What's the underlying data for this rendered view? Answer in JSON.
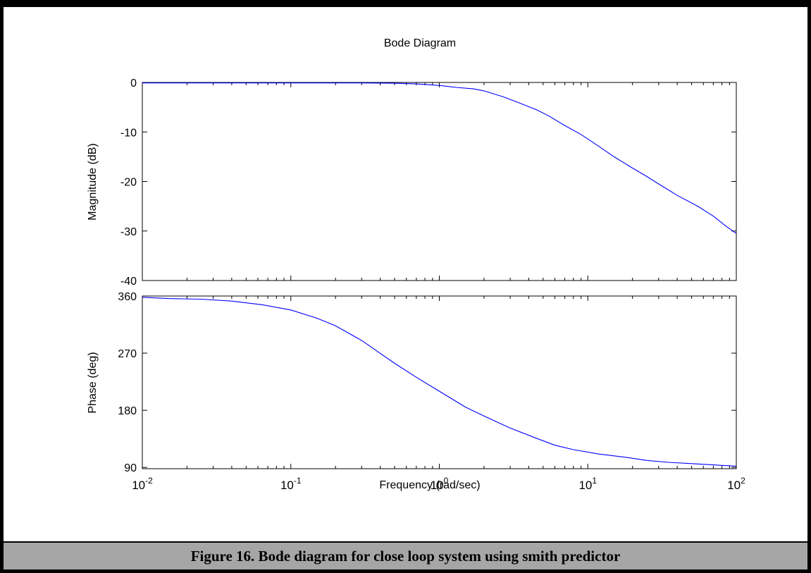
{
  "chart_data": [
    {
      "type": "line",
      "title": "Bode Diagram",
      "xlabel": "Frequency  (rad/sec)",
      "ylabel": "Magnitude (dB)",
      "x_scale": "log",
      "xlim": [
        0.01,
        100
      ],
      "ylim": [
        -40,
        0
      ],
      "yticks": [
        "0",
        "-10",
        "-20",
        "-30",
        "-40"
      ],
      "grid": false,
      "series": [
        {
          "color": "#0000ff",
          "x": [
            0.01,
            0.03,
            0.1,
            0.3,
            0.5,
            0.7,
            1.0,
            1.3,
            1.7,
            2.0,
            2.7,
            3.5,
            4.5,
            5.5,
            7,
            9,
            12,
            15,
            20,
            25,
            30,
            40,
            55,
            70,
            85,
            100
          ],
          "y": [
            -0.1,
            -0.1,
            -0.1,
            -0.1,
            -0.15,
            -0.3,
            -0.6,
            -1.0,
            -1.3,
            -1.7,
            -2.9,
            -4.2,
            -5.5,
            -6.8,
            -8.7,
            -10.5,
            -13.0,
            -15.0,
            -17.3,
            -19.0,
            -20.5,
            -22.8,
            -25.0,
            -27.0,
            -29.0,
            -30.5
          ]
        }
      ]
    },
    {
      "type": "line",
      "xlabel": "Frequency  (rad/sec)",
      "ylabel": "Phase (deg)",
      "x_scale": "log",
      "xlim": [
        0.01,
        100
      ],
      "ylim": [
        88,
        360
      ],
      "yticks": [
        "360",
        "270",
        "180",
        "90"
      ],
      "xticks": [
        {
          "base": "10",
          "exp": "-2"
        },
        {
          "base": "10",
          "exp": "-1"
        },
        {
          "base": "10",
          "exp": "0"
        },
        {
          "base": "10",
          "exp": "1"
        },
        {
          "base": "10",
          "exp": "2"
        }
      ],
      "grid": false,
      "series": [
        {
          "color": "#0000ff",
          "x": [
            0.01,
            0.015,
            0.025,
            0.04,
            0.065,
            0.1,
            0.15,
            0.2,
            0.3,
            0.5,
            0.7,
            1.0,
            1.5,
            2,
            3,
            4.5,
            6,
            8,
            12,
            18,
            25,
            35,
            50,
            70,
            100
          ],
          "y": [
            358,
            356,
            355,
            352,
            346,
            338,
            325,
            313,
            290,
            254,
            232,
            210,
            185,
            171,
            152,
            136,
            125,
            118,
            111,
            106,
            101,
            98,
            96,
            94,
            92
          ]
        }
      ]
    }
  ],
  "caption": "Figure 16. Bode diagram for close loop system using smith predictor"
}
